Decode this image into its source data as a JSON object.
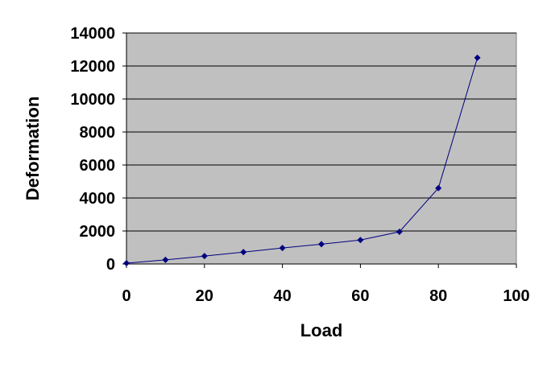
{
  "chart_data": {
    "type": "line",
    "title": "",
    "xlabel": "Load",
    "ylabel": "Deformation",
    "xlim": [
      0,
      100
    ],
    "ylim": [
      0,
      14000
    ],
    "x_ticks": [
      0,
      20,
      40,
      60,
      80,
      100
    ],
    "y_ticks": [
      0,
      2000,
      4000,
      6000,
      8000,
      10000,
      12000,
      14000
    ],
    "grid": "horizontal",
    "legend": "none",
    "colors": {
      "plot_background": "#c0c0c0",
      "series": "#000080",
      "grid": "#000000"
    },
    "series": [
      {
        "x": [
          0,
          10,
          20,
          30,
          40,
          50,
          60,
          70,
          80,
          90
        ],
        "y": [
          50,
          250,
          480,
          720,
          970,
          1200,
          1450,
          1950,
          4600,
          12500
        ]
      }
    ]
  }
}
